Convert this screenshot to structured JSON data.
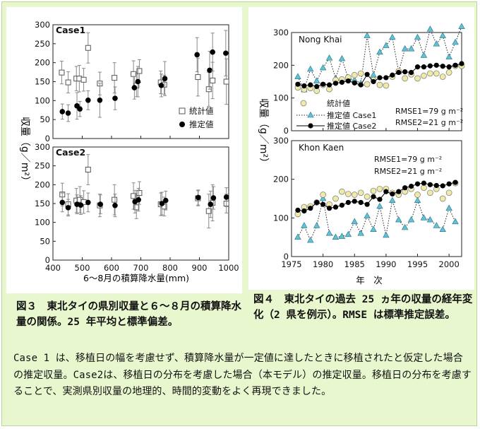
{
  "figures": {
    "fig3": {
      "caption": "図３　東北タイの県別収量と６〜８月の積算降水量の関係。25 年平均と標準偏差。",
      "ylabel": "収量（g／m²）",
      "xlabel": "6〜8月の積算降水量(mm)",
      "legend": {
        "stat": "統計値",
        "est": "推定値"
      }
    },
    "fig4": {
      "caption": "図４　東北タイの過去 25 ヵ年の収量の経年変化（2 県を例示）。RMSE は標準推定誤差。",
      "ylabel": "収量（g／m²）",
      "xlabel": "年　次",
      "legend": {
        "stat": "統計値",
        "case1": "推定値 Case1",
        "case2": "推定値 Case2"
      },
      "rmse_top": {
        "r1": "RMSE1=79 g m⁻²",
        "r2": "RMSE2=21 g m⁻²"
      },
      "rmse_bottom": {
        "r1": "RMSE1=79 g m⁻²",
        "r2": "RMSE2=21 g m⁻²"
      }
    }
  },
  "body_text": "Case 1 は、移植日の幅を考慮せず、積算降水量が一定値に達したときに移植されたと仮定した場合の推定収量。Case2は、移植日の分布を考慮した場合（本モデル）の推定収量。移植日の分布を考慮することで、実測県別収量の地理的、時間的変動をよく再現できました。",
  "chart_data": [
    {
      "type": "scatter",
      "title": "Case1",
      "xlabel": "6〜8月の積算降水量(mm)",
      "ylabel": "収量（g／m²）",
      "xlim": [
        400,
        1000
      ],
      "ylim": [
        0,
        300
      ],
      "xticks": [
        400,
        500,
        600,
        700,
        800,
        900,
        1000
      ],
      "yticks": [
        0,
        50,
        100,
        150,
        200,
        250,
        300
      ],
      "series": [
        {
          "name": "統計値",
          "marker": "open-square",
          "color": "#555555",
          "points": [
            {
              "x": 430,
              "y": 174,
              "err": 30
            },
            {
              "x": 452,
              "y": 148,
              "err": 28
            },
            {
              "x": 480,
              "y": 158,
              "err": 32
            },
            {
              "x": 490,
              "y": 158,
              "err": 35
            },
            {
              "x": 505,
              "y": 155,
              "err": 30
            },
            {
              "x": 520,
              "y": 239,
              "err": 40
            },
            {
              "x": 560,
              "y": 145,
              "err": 30
            },
            {
              "x": 610,
              "y": 160,
              "err": 40
            },
            {
              "x": 675,
              "y": 170,
              "err": 35
            },
            {
              "x": 685,
              "y": 140,
              "err": 30
            },
            {
              "x": 695,
              "y": 178,
              "err": 30
            },
            {
              "x": 768,
              "y": 148,
              "err": 30
            },
            {
              "x": 780,
              "y": 142,
              "err": 25
            },
            {
              "x": 895,
              "y": 162,
              "err": 50
            },
            {
              "x": 932,
              "y": 130,
              "err": 45
            },
            {
              "x": 945,
              "y": 153,
              "err": 48
            },
            {
              "x": 992,
              "y": 150,
              "err": 60
            }
          ]
        },
        {
          "name": "推定値",
          "marker": "filled-circle",
          "color": "#000000",
          "points": [
            {
              "x": 432,
              "y": 71,
              "err": 20
            },
            {
              "x": 452,
              "y": 67,
              "err": 22
            },
            {
              "x": 482,
              "y": 86,
              "err": 35
            },
            {
              "x": 492,
              "y": 78,
              "err": 20
            },
            {
              "x": 520,
              "y": 101,
              "err": 25
            },
            {
              "x": 560,
              "y": 101,
              "err": 45
            },
            {
              "x": 612,
              "y": 106,
              "err": 30
            },
            {
              "x": 678,
              "y": 134,
              "err": 30
            },
            {
              "x": 690,
              "y": 150,
              "err": 40
            },
            {
              "x": 770,
              "y": 140,
              "err": 30
            },
            {
              "x": 782,
              "y": 158,
              "err": 45
            },
            {
              "x": 892,
              "y": 221,
              "err": 45
            },
            {
              "x": 935,
              "y": 180,
              "err": 50
            },
            {
              "x": 945,
              "y": 228,
              "err": 50
            },
            {
              "x": 990,
              "y": 225,
              "err": 60
            }
          ]
        }
      ]
    },
    {
      "type": "scatter",
      "title": "Case2",
      "xlabel": "6〜8月の積算降水量(mm)",
      "ylabel": "収量（g／m²）",
      "xlim": [
        400,
        1000
      ],
      "ylim": [
        0,
        300
      ],
      "xticks": [
        400,
        500,
        600,
        700,
        800,
        900,
        1000
      ],
      "yticks": [
        0,
        50,
        100,
        150,
        200,
        250,
        300
      ],
      "series": [
        {
          "name": "統計値",
          "marker": "open-square",
          "color": "#555555",
          "points": [
            {
              "x": 432,
              "y": 174,
              "err": 30
            },
            {
              "x": 452,
              "y": 148,
              "err": 28
            },
            {
              "x": 480,
              "y": 158,
              "err": 32
            },
            {
              "x": 492,
              "y": 160,
              "err": 35
            },
            {
              "x": 505,
              "y": 154,
              "err": 30
            },
            {
              "x": 520,
              "y": 240,
              "err": 40
            },
            {
              "x": 560,
              "y": 145,
              "err": 30
            },
            {
              "x": 610,
              "y": 160,
              "err": 40
            },
            {
              "x": 675,
              "y": 170,
              "err": 35
            },
            {
              "x": 685,
              "y": 140,
              "err": 30
            },
            {
              "x": 695,
              "y": 178,
              "err": 30
            },
            {
              "x": 768,
              "y": 148,
              "err": 30
            },
            {
              "x": 780,
              "y": 142,
              "err": 25
            },
            {
              "x": 895,
              "y": 164,
              "err": 20
            },
            {
              "x": 932,
              "y": 130,
              "err": 45
            },
            {
              "x": 945,
              "y": 152,
              "err": 48
            },
            {
              "x": 992,
              "y": 150,
              "err": 25
            }
          ]
        },
        {
          "name": "推定値",
          "marker": "filled-circle",
          "color": "#000000",
          "points": [
            {
              "x": 432,
              "y": 153,
              "err": 25
            },
            {
              "x": 452,
              "y": 139,
              "err": 22
            },
            {
              "x": 482,
              "y": 148,
              "err": 25
            },
            {
              "x": 495,
              "y": 146,
              "err": 25
            },
            {
              "x": 520,
              "y": 153,
              "err": 25
            },
            {
              "x": 562,
              "y": 148,
              "err": 25
            },
            {
              "x": 612,
              "y": 145,
              "err": 30
            },
            {
              "x": 680,
              "y": 155,
              "err": 30
            },
            {
              "x": 692,
              "y": 160,
              "err": 30
            },
            {
              "x": 772,
              "y": 150,
              "err": 30
            },
            {
              "x": 785,
              "y": 158,
              "err": 25
            },
            {
              "x": 896,
              "y": 166,
              "err": 20
            },
            {
              "x": 938,
              "y": 148,
              "err": 35
            },
            {
              "x": 948,
              "y": 165,
              "err": 30
            },
            {
              "x": 992,
              "y": 167,
              "err": 25
            }
          ]
        }
      ]
    },
    {
      "type": "line",
      "title": "Nong Khai",
      "xlabel": "年　次",
      "ylabel": "収量（g／m²）",
      "xlim": [
        1975,
        2002
      ],
      "ylim": [
        0,
        300
      ],
      "xticks": [
        1975,
        1980,
        1985,
        1990,
        1995,
        2000
      ],
      "yticks": [
        0,
        100,
        200,
        300
      ],
      "x": [
        1976,
        1977,
        1978,
        1979,
        1980,
        1981,
        1982,
        1983,
        1984,
        1985,
        1986,
        1987,
        1988,
        1989,
        1990,
        1991,
        1992,
        1993,
        1994,
        1995,
        1996,
        1997,
        1998,
        1999,
        2000,
        2001,
        2002
      ],
      "series": [
        {
          "name": "統計値",
          "marker": "open-circle",
          "color": "#efeaa8",
          "values": [
            132,
            126,
            130,
            122,
            140,
            127,
            155,
            157,
            163,
            170,
            175,
            142,
            155,
            140,
            138,
            165,
            182,
            160,
            172,
            160,
            168,
            175,
            175,
            165,
            178,
            198,
            198
          ]
        },
        {
          "name": "推定値 Case1",
          "marker": "triangle",
          "line": "dotted",
          "color": "#5fc3d6",
          "values": [
            165,
            125,
            188,
            152,
            192,
            222,
            160,
            220,
            160,
            155,
            145,
            290,
            170,
            240,
            260,
            285,
            180,
            250,
            250,
            285,
            230,
            310,
            265,
            290,
            225,
            270,
            318
          ]
        },
        {
          "name": "推定値 Case2",
          "marker": "filled-circle",
          "line": "solid",
          "color": "#000000",
          "values": [
            142,
            137,
            140,
            135,
            142,
            140,
            145,
            148,
            152,
            146,
            140,
            172,
            150,
            162,
            162,
            170,
            178,
            180,
            178,
            195,
            195,
            198,
            200,
            197,
            195,
            200,
            205
          ]
        }
      ]
    },
    {
      "type": "line",
      "title": "Khon Kaen",
      "xlabel": "年　次",
      "ylabel": "収量（g／m²）",
      "xlim": [
        1975,
        2002
      ],
      "ylim": [
        0,
        300
      ],
      "xticks": [
        1975,
        1980,
        1985,
        1990,
        1995,
        2000
      ],
      "yticks": [
        0,
        100,
        200,
        300
      ],
      "x": [
        1976,
        1977,
        1978,
        1979,
        1980,
        1981,
        1982,
        1983,
        1984,
        1985,
        1986,
        1987,
        1988,
        1989,
        1990,
        1991,
        1992,
        1993,
        1994,
        1995,
        1996,
        1997,
        1998,
        1999,
        2000,
        2001
      ],
      "series": [
        {
          "name": "統計値",
          "marker": "open-circle",
          "color": "#efeaa8",
          "values": [
            110,
            128,
            130,
            140,
            160,
            135,
            150,
            168,
            162,
            160,
            165,
            155,
            170,
            175,
            175,
            165,
            160,
            168,
            175,
            160,
            178,
            165,
            175,
            150,
            165,
            190
          ]
        },
        {
          "name": "推定値 Case1",
          "marker": "triangle",
          "line": "dotted",
          "color": "#5fc3d6",
          "values": [
            50,
            80,
            42,
            80,
            150,
            60,
            50,
            52,
            57,
            90,
            60,
            105,
            70,
            130,
            55,
            145,
            95,
            75,
            95,
            145,
            100,
            95,
            80,
            70,
            125,
            90
          ]
        },
        {
          "name": "推定値 Case2",
          "marker": "filled-circle",
          "line": "solid",
          "color": "#000000",
          "values": [
            120,
            118,
            125,
            140,
            135,
            125,
            128,
            133,
            140,
            143,
            140,
            135,
            155,
            148,
            168,
            162,
            168,
            178,
            182,
            188,
            190,
            186,
            184,
            183,
            188,
            192
          ]
        }
      ]
    }
  ]
}
